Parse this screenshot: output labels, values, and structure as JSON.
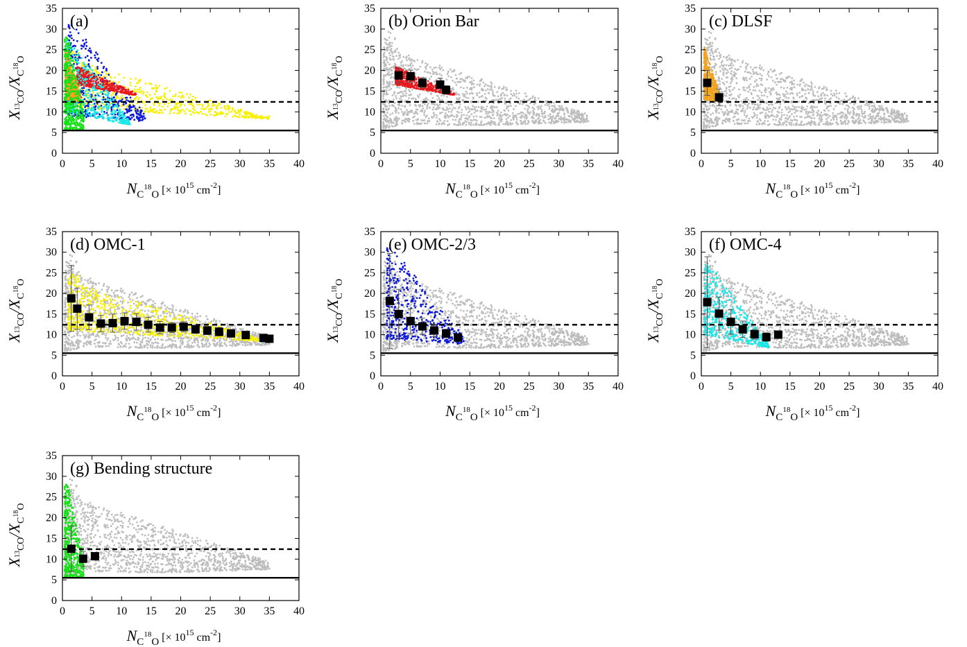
{
  "figure": {
    "xlabel": {
      "symbol": "N",
      "sub_main": "C",
      "sub_sup": "18",
      "sub_tail": "O",
      "units": " [× 10",
      "units_exp": "15",
      "units_tail": " cm",
      "units_exp2": "-2",
      "units_close": "]"
    },
    "ylabel": {
      "num": "X",
      "num_sub_sup": "13",
      "num_sub": "CO",
      "slash": "/",
      "den": "X",
      "den_sub_main": "C",
      "den_sub_sup": "18",
      "den_sub_tail": "O"
    },
    "x_ticks": [
      "0",
      "5",
      "10",
      "15",
      "20",
      "25",
      "30",
      "35",
      "40"
    ],
    "y_ticks": [
      "0",
      "5",
      "10",
      "15",
      "20",
      "25",
      "30",
      "35"
    ]
  },
  "colors": {
    "background_points": "#bdbdbd",
    "orion_bar": "#e8191e",
    "dlsf": "#f2a31f",
    "omc1": "#f7f000",
    "omc23": "#0b17d8",
    "omc4": "#19e7e7",
    "bending": "#16e016",
    "binned": "#000000"
  },
  "chart_data": [
    {
      "type": "scatter",
      "panel": "a",
      "label": "(a)",
      "xlim": [
        0,
        40
      ],
      "ylim": [
        0,
        35
      ],
      "hlines": [
        {
          "y": 12.4,
          "style": "dashed"
        },
        {
          "y": 5.5,
          "style": "solid"
        }
      ],
      "series": [
        {
          "region": "omc1",
          "color_key": "omc1",
          "x": [
            3,
            5,
            8,
            10,
            12,
            15,
            18,
            20,
            22,
            25,
            28,
            30,
            33,
            35
          ],
          "y": [
            21,
            19,
            16,
            15,
            15,
            14,
            13,
            12.5,
            12,
            11,
            10.5,
            10,
            9.5,
            9
          ]
        },
        {
          "region": "omc23",
          "color_key": "omc23",
          "x": [
            1.5,
            2,
            3,
            4,
            5,
            6,
            8,
            10,
            12,
            13.5
          ],
          "y": [
            31,
            26,
            22,
            19,
            16,
            14,
            12,
            11,
            10,
            9
          ]
        },
        {
          "region": "omc4",
          "color_key": "omc4",
          "x": [
            1,
            2,
            3,
            4,
            5,
            7,
            9,
            11
          ],
          "y": [
            26,
            20,
            17,
            15,
            14,
            12,
            10,
            8
          ]
        },
        {
          "region": "orion_bar",
          "color_key": "orion_bar",
          "x": [
            3,
            5,
            7,
            9,
            11,
            12
          ],
          "y": [
            19,
            18,
            17,
            16,
            15,
            14
          ]
        },
        {
          "region": "dlsf",
          "color_key": "dlsf",
          "x": [
            0.8,
            1.2,
            1.6,
            2,
            2.5
          ],
          "y": [
            25,
            22,
            18,
            15,
            13
          ]
        },
        {
          "region": "bending",
          "color_key": "bending",
          "x": [
            0.5,
            1,
            1.5,
            2,
            2.5,
            3
          ],
          "y": [
            28,
            22,
            17,
            13,
            10,
            8
          ]
        }
      ]
    },
    {
      "type": "scatter",
      "panel": "b",
      "label": "(b) Orion Bar",
      "xlim": [
        0,
        40
      ],
      "ylim": [
        0,
        35
      ],
      "hlines": [
        {
          "y": 12.4,
          "style": "dashed"
        },
        {
          "y": 5.5,
          "style": "solid"
        }
      ],
      "highlight": {
        "region": "orion_bar",
        "color_key": "orion_bar"
      },
      "binned": {
        "x": [
          3,
          5,
          7,
          10,
          11
        ],
        "y": [
          18.8,
          18.6,
          17.0,
          16.6,
          15.3
        ],
        "err": [
          1.8,
          1.5,
          1.2,
          1.5,
          1.0
        ]
      }
    },
    {
      "type": "scatter",
      "panel": "c",
      "label": "(c) DLSF",
      "xlim": [
        0,
        40
      ],
      "ylim": [
        0,
        35
      ],
      "hlines": [
        {
          "y": 12.4,
          "style": "dashed"
        },
        {
          "y": 5.5,
          "style": "solid"
        }
      ],
      "highlight": {
        "region": "dlsf",
        "color_key": "dlsf"
      },
      "binned": {
        "x": [
          1,
          3
        ],
        "y": [
          17.0,
          13.5
        ],
        "err": [
          3.0,
          2.0
        ]
      }
    },
    {
      "type": "scatter",
      "panel": "d",
      "label": "(d) OMC-1",
      "xlim": [
        0,
        40
      ],
      "ylim": [
        0,
        35
      ],
      "hlines": [
        {
          "y": 12.4,
          "style": "dashed"
        },
        {
          "y": 5.5,
          "style": "solid"
        }
      ],
      "highlight": {
        "region": "omc1",
        "color_key": "omc1"
      },
      "binned": {
        "x": [
          1.5,
          2.5,
          4.5,
          6.5,
          8.5,
          10.5,
          12.5,
          14.5,
          16.5,
          18.5,
          20.5,
          22.5,
          24.5,
          26.5,
          28.5,
          31,
          34,
          35
        ],
        "y": [
          18.8,
          16.3,
          14.2,
          12.7,
          12.8,
          13.3,
          13.1,
          12.4,
          11.7,
          11.7,
          11.9,
          11.3,
          11.0,
          10.7,
          10.3,
          9.9,
          9.2,
          9.0
        ],
        "err": [
          8,
          5,
          3,
          2,
          2.2,
          2,
          2,
          1.8,
          1.5,
          1.2,
          1.2,
          1,
          1,
          1,
          0.8,
          0.6,
          0.4,
          0.4
        ]
      }
    },
    {
      "type": "scatter",
      "panel": "e",
      "label": "(e) OMC-2/3",
      "xlim": [
        0,
        40
      ],
      "ylim": [
        0,
        35
      ],
      "hlines": [
        {
          "y": 12.4,
          "style": "dashed"
        },
        {
          "y": 5.5,
          "style": "solid"
        }
      ],
      "highlight": {
        "region": "omc23",
        "color_key": "omc23"
      },
      "binned": {
        "x": [
          1.5,
          3,
          5,
          7,
          9,
          11,
          13
        ],
        "y": [
          18.2,
          15.0,
          13.3,
          12.0,
          11.0,
          10.3,
          9.3
        ],
        "err": [
          11.5,
          6,
          3,
          2,
          1.5,
          1,
          0.6
        ]
      }
    },
    {
      "type": "scatter",
      "panel": "f",
      "label": "(f) OMC-4",
      "xlim": [
        0,
        40
      ],
      "ylim": [
        0,
        35
      ],
      "hlines": [
        {
          "y": 12.4,
          "style": "dashed"
        },
        {
          "y": 5.5,
          "style": "solid"
        }
      ],
      "highlight": {
        "region": "omc4",
        "color_key": "omc4"
      },
      "binned": {
        "x": [
          1,
          3,
          5,
          7,
          9,
          11,
          13
        ],
        "y": [
          17.9,
          15.1,
          13.1,
          11.3,
          10.1,
          9.4,
          10.0
        ],
        "err": [
          11,
          4,
          3,
          2,
          1.2,
          1,
          0.8
        ]
      }
    },
    {
      "type": "scatter",
      "panel": "g",
      "label": "(g) Bending structure",
      "xlim": [
        0,
        40
      ],
      "ylim": [
        0,
        35
      ],
      "hlines": [
        {
          "y": 12.4,
          "style": "dashed"
        },
        {
          "y": 5.5,
          "style": "solid"
        }
      ],
      "highlight": {
        "region": "bending",
        "color_key": "bending"
      },
      "binned": {
        "x": [
          1.5,
          3.5,
          5.5
        ],
        "y": [
          12.5,
          10.1,
          10.7
        ],
        "err": [
          5.5,
          1.8,
          0.6
        ]
      }
    }
  ]
}
